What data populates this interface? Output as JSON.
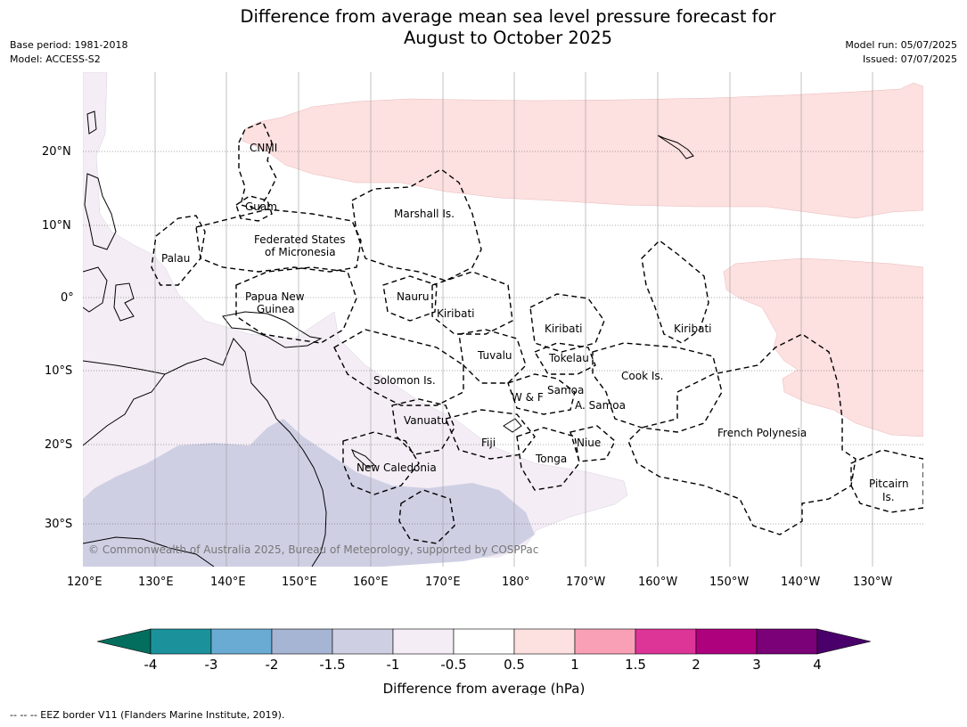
{
  "title_line1": "Difference from average mean sea level pressure forecast for",
  "title_line2": "August to October 2025",
  "meta_left": {
    "base_period": "Base period: 1981-2018",
    "model": "Model: ACCESS-S2"
  },
  "meta_right": {
    "model_run": "Model run: 05/07/2025",
    "issued": "Issued: 07/07/2025"
  },
  "copyright": "© Commonwealth of Australia 2025, Bureau of Meteorology, supported by COSPPac",
  "axis": {
    "lon_labels": [
      "120°E",
      "130°E",
      "140°E",
      "150°E",
      "160°E",
      "170°E",
      "180°",
      "170°W",
      "160°W",
      "150°W",
      "140°W",
      "130°W"
    ],
    "lat_labels": [
      "20°N",
      "10°N",
      "0°",
      "10°S",
      "20°S",
      "30°S"
    ]
  },
  "places": {
    "cnmi": "CNMI",
    "guam": "Guam",
    "marshall": "Marshall Is.",
    "fsm1": "Federated States",
    "fsm2": "of Micronesia",
    "palau": "Palau",
    "png1": "Papua New",
    "png2": "Guinea",
    "nauru": "Nauru",
    "kiribati_w": "Kiribati",
    "kiribati_c": "Kiribati",
    "kiribati_e": "Kiribati",
    "tuvalu": "Tuvalu",
    "tokelau": "Tokelau",
    "cook": "Cook Is.",
    "solomon": "Solomon Is.",
    "wf": "W & F",
    "samoa": "Samoa",
    "asamoa": "A. Samoa",
    "vanuatu": "Vanuatu",
    "fiji": "Fiji",
    "niue": "Niue",
    "tonga": "Tonga",
    "frenchpoly": "French Polynesia",
    "newcal": "New Caledonia",
    "pitcairn1": "Pitcairn",
    "pitcairn2": "Is."
  },
  "colorbar": {
    "colors": [
      "#046e5e",
      "#1b929b",
      "#6aabd4",
      "#a7b5d4",
      "#cfcfe4",
      "#f4edf5",
      "#ffffff",
      "#fde0e0",
      "#f9a0b7",
      "#dd3497",
      "#ae017e",
      "#7a0177",
      "#49006a"
    ],
    "tick_labels": [
      "-4",
      "-3",
      "-2",
      "-1.5",
      "-1",
      "-0.5",
      "0.5",
      "1",
      "1.5",
      "2",
      "3",
      "4"
    ],
    "label": "Difference from average (hPa)"
  },
  "footnote": "--  --  -- EEZ border V11 (Flanders Marine Institute, 2019)."
}
